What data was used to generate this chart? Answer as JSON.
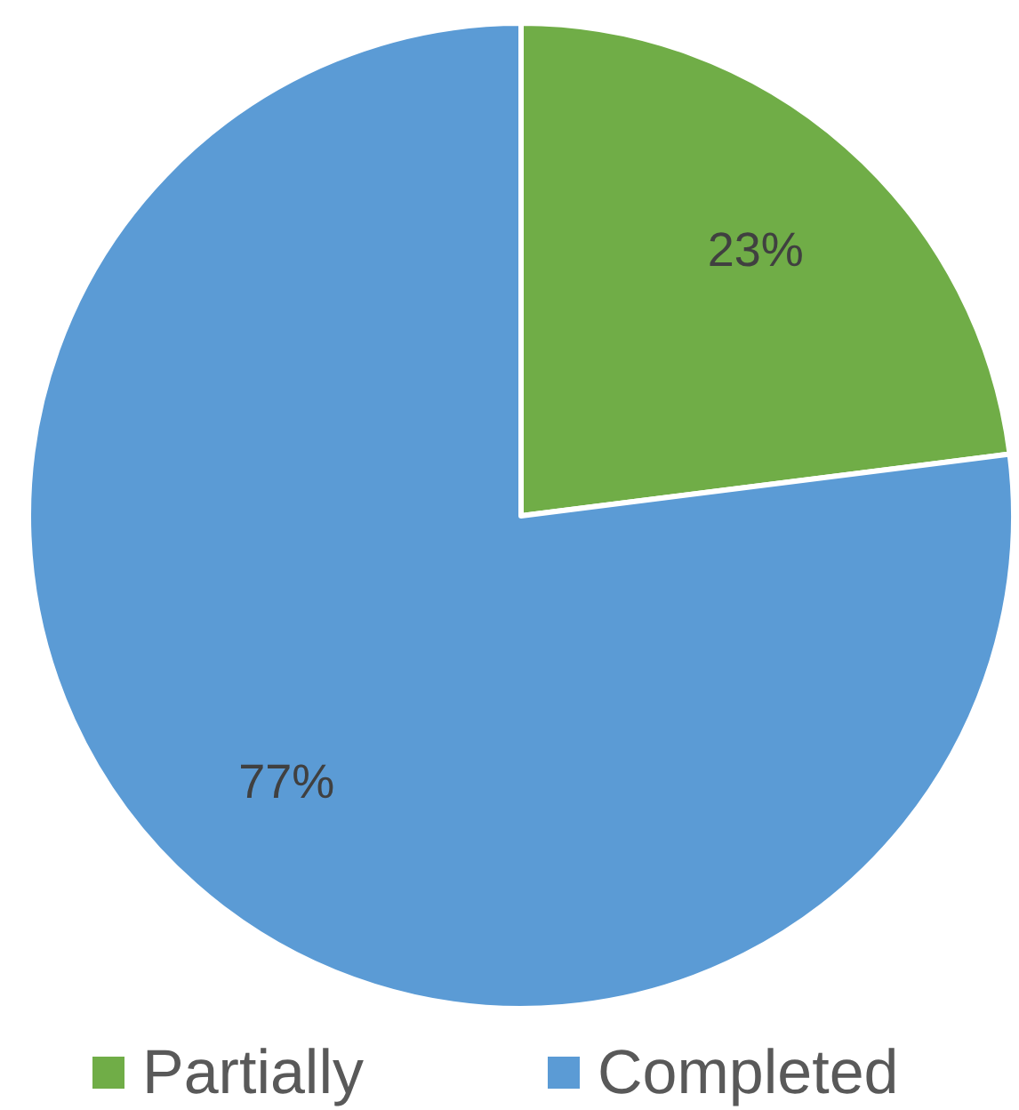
{
  "chart_data": {
    "type": "pie",
    "categories": [
      "Partially",
      "Completed"
    ],
    "values": [
      23,
      77
    ],
    "colors": [
      "#70ad47",
      "#5b9bd5"
    ],
    "value_labels": [
      "23%",
      "77%"
    ],
    "legend": "bottom"
  }
}
